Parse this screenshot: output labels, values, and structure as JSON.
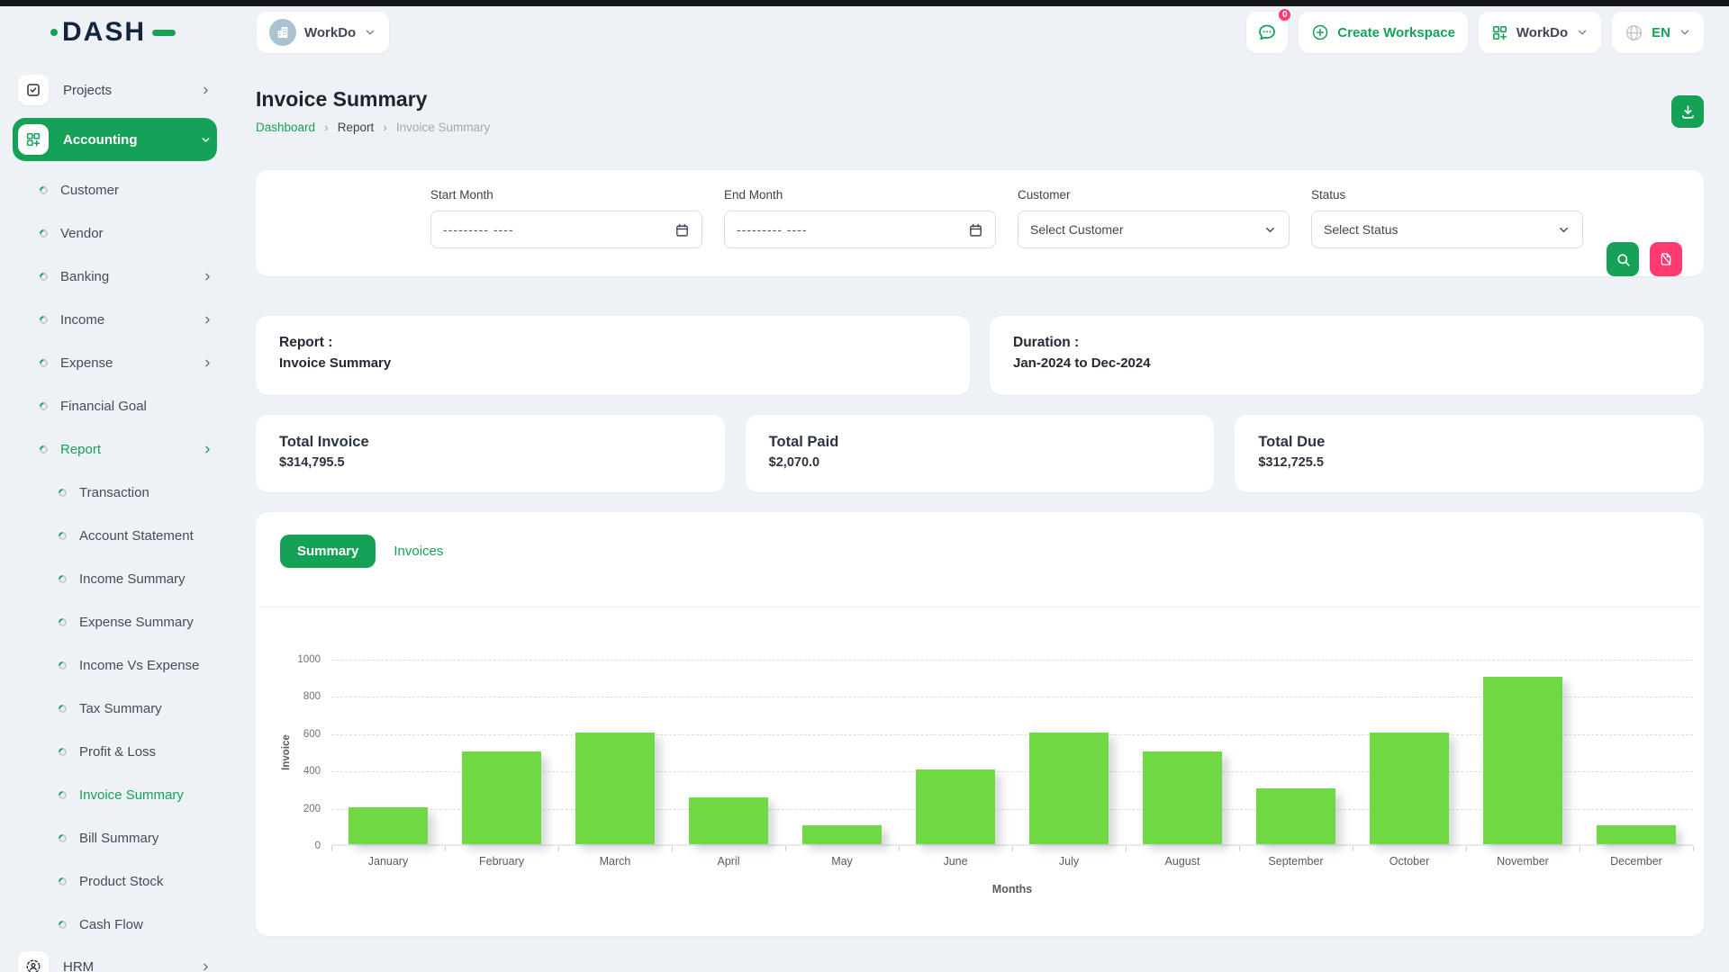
{
  "brand": {
    "logo_text": "DASH"
  },
  "header": {
    "workspace_pill": {
      "name": "WorkDo"
    },
    "chat_badge": "0",
    "create_workspace_label": "Create Workspace",
    "workspace_switcher_label": "WorkDo",
    "language": "EN"
  },
  "sidebar": {
    "items": [
      {
        "label": "Projects",
        "icon": "checkbox-icon",
        "level": 0,
        "chevron": "right",
        "active": false
      },
      {
        "label": "Accounting",
        "icon": "grid-plus-icon",
        "level": 0,
        "chevron": "down",
        "active": true
      },
      {
        "label": "Customer",
        "level": 1
      },
      {
        "label": "Vendor",
        "level": 1
      },
      {
        "label": "Banking",
        "level": 1,
        "chevron": "right"
      },
      {
        "label": "Income",
        "level": 1,
        "chevron": "right"
      },
      {
        "label": "Expense",
        "level": 1,
        "chevron": "right"
      },
      {
        "label": "Financial Goal",
        "level": 1
      },
      {
        "label": "Report",
        "level": 1,
        "chevron": "right",
        "active": true
      },
      {
        "label": "Transaction",
        "level": 2
      },
      {
        "label": "Account Statement",
        "level": 2
      },
      {
        "label": "Income Summary",
        "level": 2
      },
      {
        "label": "Expense Summary",
        "level": 2
      },
      {
        "label": "Income Vs Expense",
        "level": 2
      },
      {
        "label": "Tax Summary",
        "level": 2
      },
      {
        "label": "Profit & Loss",
        "level": 2
      },
      {
        "label": "Invoice Summary",
        "level": 2,
        "active": true
      },
      {
        "label": "Bill Summary",
        "level": 2
      },
      {
        "label": "Product Stock",
        "level": 2
      },
      {
        "label": "Cash Flow",
        "level": 2
      },
      {
        "label": "HRM",
        "icon": "user-scan-icon",
        "level": 0,
        "chevron": "right",
        "active": false
      }
    ]
  },
  "page": {
    "title": "Invoice Summary",
    "breadcrumb": [
      "Dashboard",
      "Report",
      "Invoice Summary"
    ]
  },
  "filters": {
    "start_month": {
      "label": "Start Month",
      "placeholder": "--------- ----"
    },
    "end_month": {
      "label": "End Month",
      "placeholder": "--------- ----"
    },
    "customer": {
      "label": "Customer",
      "value": "Select Customer"
    },
    "status": {
      "label": "Status",
      "value": "Select Status"
    }
  },
  "info_cards": {
    "report": {
      "label": "Report :",
      "value": "Invoice Summary"
    },
    "duration": {
      "label": "Duration :",
      "value": "Jan-2024 to Dec-2024"
    }
  },
  "stats": [
    {
      "label": "Total Invoice",
      "value": "$314,795.5"
    },
    {
      "label": "Total Paid",
      "value": "$2,070.0"
    },
    {
      "label": "Total Due",
      "value": "$312,725.5"
    }
  ],
  "tabs": [
    {
      "label": "Summary",
      "active": true
    },
    {
      "label": "Invoices",
      "active": false
    }
  ],
  "chart_data": {
    "type": "bar",
    "title": "",
    "categories": [
      "January",
      "February",
      "March",
      "April",
      "May",
      "June",
      "July",
      "August",
      "September",
      "October",
      "November",
      "December"
    ],
    "values": [
      200,
      500,
      600,
      250,
      100,
      400,
      600,
      500,
      300,
      600,
      900,
      100
    ],
    "xlabel": "Months",
    "ylabel": "Invoice",
    "ylim": [
      0,
      1000
    ],
    "yticks": [
      0,
      200,
      400,
      600,
      800,
      1000
    ],
    "grid": true,
    "legend": false,
    "bar_color": "#6fd943"
  },
  "colors": {
    "primary": "#15a257",
    "bar": "#6fd943",
    "danger": "#ff3a6e",
    "page_bg": "#eef1f5"
  }
}
